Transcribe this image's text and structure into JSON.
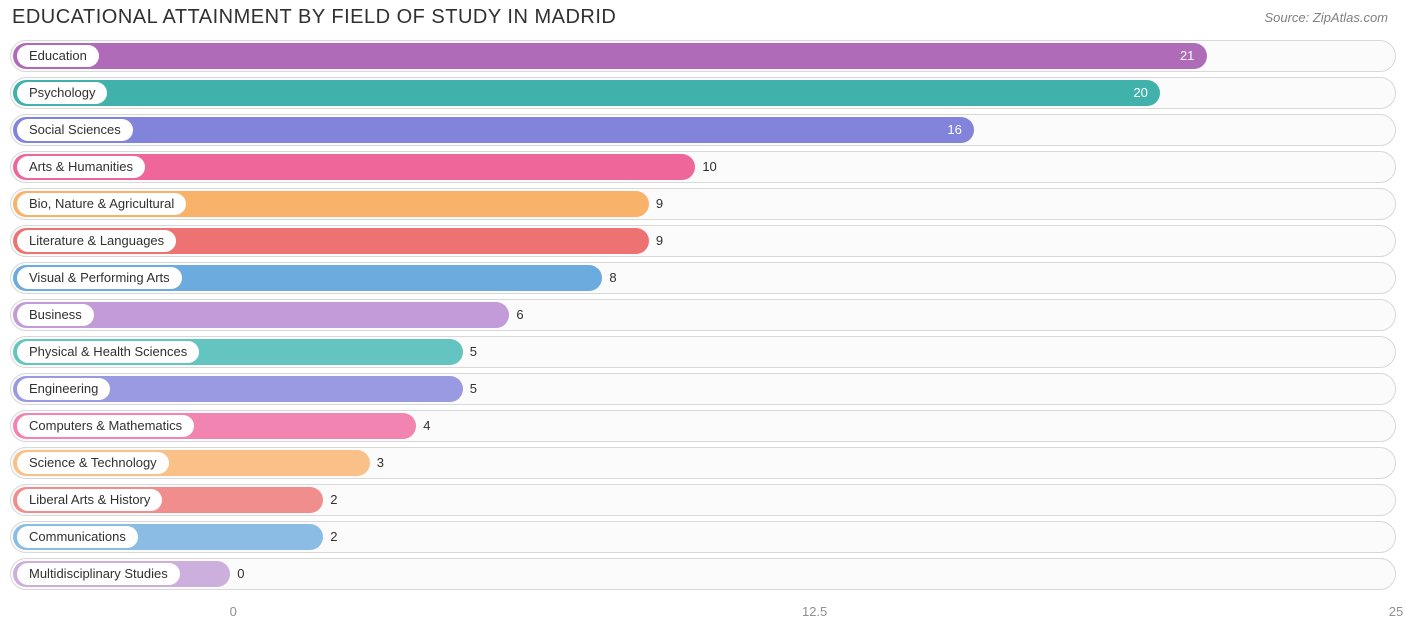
{
  "title": "EDUCATIONAL ATTAINMENT BY FIELD OF STUDY IN MADRID",
  "source": "Source: ZipAtlas.com",
  "chart": {
    "type": "bar-horizontal",
    "xlim": [
      0,
      25
    ],
    "xticks": [
      0,
      12.5,
      25
    ],
    "bar_origin_value": -4.8,
    "track_border_color": "#d8d8d8",
    "track_bg_color": "#fbfbfb",
    "title_color": "#303030",
    "title_fontsize": 20,
    "source_color": "#808080",
    "source_fontsize": 13,
    "label_fontsize": 13,
    "rows": [
      {
        "label": "Education",
        "value": 21,
        "color": "#b06bb8",
        "value_inside": true
      },
      {
        "label": "Psychology",
        "value": 20,
        "color": "#41b1ac",
        "value_inside": true
      },
      {
        "label": "Social Sciences",
        "value": 16,
        "color": "#8283db",
        "value_inside": true
      },
      {
        "label": "Arts & Humanities",
        "value": 10,
        "color": "#ee669a",
        "value_inside": false
      },
      {
        "label": "Bio, Nature & Agricultural",
        "value": 9,
        "color": "#f8b26a",
        "value_inside": false
      },
      {
        "label": "Literature & Languages",
        "value": 9,
        "color": "#ed7271",
        "value_inside": false
      },
      {
        "label": "Visual & Performing Arts",
        "value": 8,
        "color": "#6cabdd",
        "value_inside": false
      },
      {
        "label": "Business",
        "value": 6,
        "color": "#c29bd8",
        "value_inside": false
      },
      {
        "label": "Physical & Health Sciences",
        "value": 5,
        "color": "#64c4bf",
        "value_inside": false
      },
      {
        "label": "Engineering",
        "value": 5,
        "color": "#9a9ae3",
        "value_inside": false
      },
      {
        "label": "Computers & Mathematics",
        "value": 4,
        "color": "#f184b0",
        "value_inside": false
      },
      {
        "label": "Science & Technology",
        "value": 3,
        "color": "#f9c088",
        "value_inside": false
      },
      {
        "label": "Liberal Arts & History",
        "value": 2,
        "color": "#f08e8d",
        "value_inside": false
      },
      {
        "label": "Communications",
        "value": 2,
        "color": "#8bbce4",
        "value_inside": false
      },
      {
        "label": "Multidisciplinary Studies",
        "value": 0,
        "color": "#cdafde",
        "value_inside": false
      }
    ]
  }
}
